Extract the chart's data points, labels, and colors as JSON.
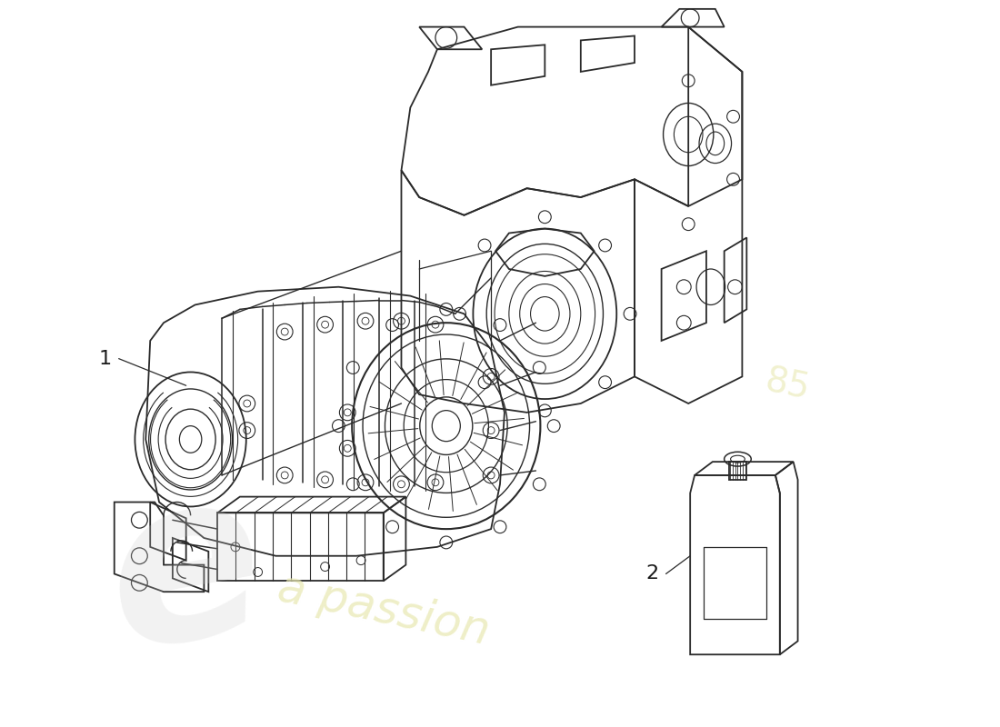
{
  "background_color": "#ffffff",
  "line_color": "#2a2a2a",
  "watermark_gray": "#cccccc",
  "watermark_yellow": "#e8e8b0",
  "label_color": "#1a1a1a",
  "figsize": [
    11.0,
    8.0
  ],
  "dpi": 100
}
